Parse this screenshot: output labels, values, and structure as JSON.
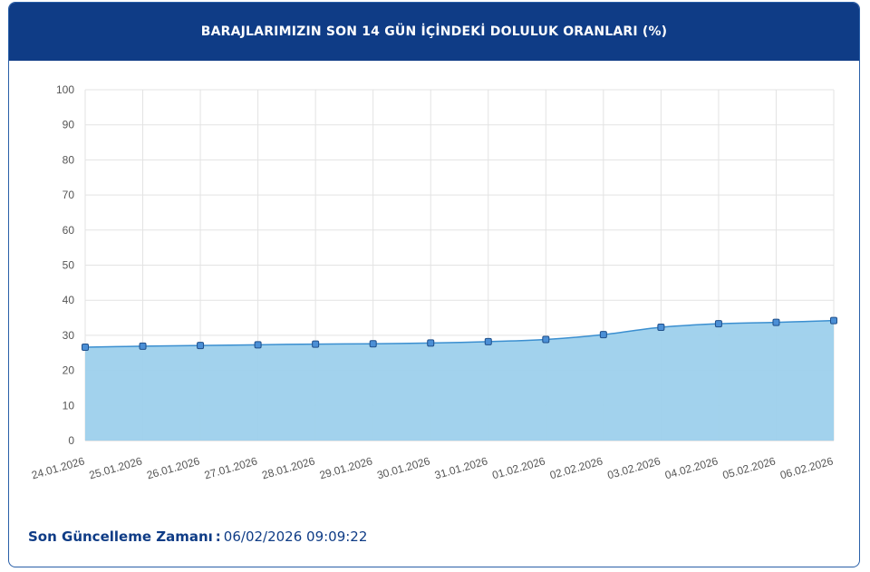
{
  "header": {
    "title": "BARAJLARIMIZIN SON 14 GÜN İÇİNDEKİ DOLULUK ORANLARI (%)"
  },
  "footer": {
    "label": "Son Güncelleme Zamanı",
    "separator": ":",
    "value": "06/02/2026 09:09:22"
  },
  "colors": {
    "header_bg": "#0f3c86",
    "accent": "#0f3c86",
    "area_fill": "#9dd0ec",
    "line": "#3b8fd0",
    "marker_fill": "#4b8fd6",
    "marker_stroke": "#1f4f8a",
    "grid": "#e3e3e3",
    "tick_text": "#555555"
  },
  "chart_data": {
    "type": "area",
    "title": "",
    "xlabel": "",
    "ylabel": "",
    "ylim": [
      0,
      100
    ],
    "yticks": [
      0,
      10,
      20,
      30,
      40,
      50,
      60,
      70,
      80,
      90,
      100
    ],
    "grid": true,
    "legend": "none",
    "categories": [
      "24.01.2026",
      "25.01.2026",
      "26.01.2026",
      "27.01.2026",
      "28.01.2026",
      "29.01.2026",
      "30.01.2026",
      "31.01.2026",
      "01.02.2026",
      "02.02.2026",
      "03.02.2026",
      "04.02.2026",
      "05.02.2026",
      "06.02.2026"
    ],
    "series": [
      {
        "values": [
          26.6,
          26.9,
          27.1,
          27.3,
          27.5,
          27.6,
          27.8,
          28.2,
          28.8,
          30.2,
          32.3,
          33.3,
          33.7,
          34.2
        ]
      }
    ]
  }
}
